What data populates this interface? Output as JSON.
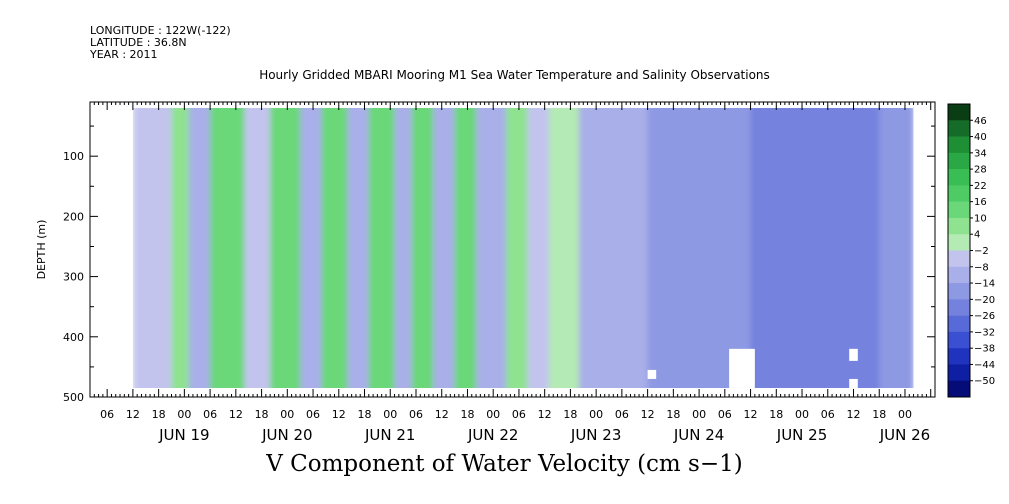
{
  "header": {
    "longitude": "LONGITUDE : 122W(-122)",
    "latitude": "LATITUDE : 36.8N",
    "year": "YEAR : 2011",
    "title": "Hourly Gridded MBARI Mooring M1 Sea Water Temperature and Salinity Observations"
  },
  "caption": "V Component of Water Velocity (cm s−1)",
  "chart_data": {
    "type": "heatmap",
    "title": "Hourly Gridded MBARI Mooring M1 Sea Water Temperature and Salinity Observations",
    "xlabel": "",
    "ylabel": "DEPTH (m)",
    "variable": "V Component of Water Velocity (cm s−1)",
    "x_range": [
      "2011-06-18T02:00",
      "2011-06-26T07:00"
    ],
    "data_x_range": [
      "2011-06-18T12:00",
      "2011-06-26T02:00"
    ],
    "ylim": [
      500,
      10
    ],
    "data_depth_range": [
      20,
      485
    ],
    "x_tick_hours": [
      "06",
      "12",
      "18",
      "00",
      "06",
      "12",
      "18",
      "00",
      "06",
      "12",
      "18",
      "00",
      "06",
      "12",
      "18",
      "00",
      "06",
      "12",
      "18",
      "00",
      "06",
      "12",
      "18",
      "00",
      "06",
      "12",
      "18",
      "00",
      "06",
      "12",
      "18",
      "00"
    ],
    "x_day_labels": [
      "JUN 19",
      "JUN 20",
      "JUN 21",
      "JUN 22",
      "JUN 23",
      "JUN 24",
      "JUN 25",
      "JUN 26"
    ],
    "y_ticks": [
      100,
      200,
      300,
      400,
      500
    ],
    "colorbar": {
      "levels": [
        "46",
        "40",
        "34",
        "28",
        "22",
        "16",
        "10",
        "4",
        "−2",
        "−8",
        "−14",
        "−20",
        "−26",
        "−32",
        "−38",
        "−44",
        "−50"
      ],
      "colors": [
        "#0a3d14",
        "#156b28",
        "#1f8f36",
        "#2aa845",
        "#39bd55",
        "#4fcb65",
        "#6ad778",
        "#8fe290",
        "#b4eab3",
        "#c2c4ee",
        "#a9afe8",
        "#8e99e3",
        "#7482de",
        "#586ad8",
        "#3a4fd1",
        "#2033bf",
        "#0f1fa3",
        "#050c78"
      ]
    },
    "bands": [
      {
        "start": "2011-06-18T12:00",
        "end": "2011-06-18T21:00",
        "v": -6
      },
      {
        "start": "2011-06-18T21:00",
        "end": "2011-06-19T01:00",
        "v": 4
      },
      {
        "start": "2011-06-19T01:00",
        "end": "2011-06-19T06:00",
        "v": -10
      },
      {
        "start": "2011-06-19T06:00",
        "end": "2011-06-19T14:00",
        "v": 10
      },
      {
        "start": "2011-06-19T14:00",
        "end": "2011-06-19T20:00",
        "v": -6
      },
      {
        "start": "2011-06-19T20:00",
        "end": "2011-06-20T03:00",
        "v": 10
      },
      {
        "start": "2011-06-20T03:00",
        "end": "2011-06-20T08:00",
        "v": -12
      },
      {
        "start": "2011-06-20T08:00",
        "end": "2011-06-20T14:00",
        "v": 12
      },
      {
        "start": "2011-06-20T14:00",
        "end": "2011-06-20T19:00",
        "v": -12
      },
      {
        "start": "2011-06-20T19:00",
        "end": "2011-06-21T01:00",
        "v": 14
      },
      {
        "start": "2011-06-21T01:00",
        "end": "2011-06-21T05:00",
        "v": -10
      },
      {
        "start": "2011-06-21T05:00",
        "end": "2011-06-21T10:00",
        "v": 14
      },
      {
        "start": "2011-06-21T10:00",
        "end": "2011-06-21T15:00",
        "v": -10
      },
      {
        "start": "2011-06-21T15:00",
        "end": "2011-06-21T20:00",
        "v": 12
      },
      {
        "start": "2011-06-21T20:00",
        "end": "2011-06-22T03:00",
        "v": -10
      },
      {
        "start": "2011-06-22T03:00",
        "end": "2011-06-22T08:00",
        "v": 8
      },
      {
        "start": "2011-06-22T08:00",
        "end": "2011-06-22T13:00",
        "v": -8
      },
      {
        "start": "2011-06-22T13:00",
        "end": "2011-06-22T20:00",
        "v": 2
      },
      {
        "start": "2011-06-22T20:00",
        "end": "2011-06-23T12:00",
        "v": -12
      },
      {
        "start": "2011-06-23T12:00",
        "end": "2011-06-24T12:00",
        "v": -20
      },
      {
        "start": "2011-06-24T12:00",
        "end": "2011-06-25T18:00",
        "v": -24
      },
      {
        "start": "2011-06-25T18:00",
        "end": "2011-06-26T02:00",
        "v": -16
      }
    ],
    "gaps": [
      {
        "start": "2011-06-23T12:00",
        "end": "2011-06-23T14:00",
        "depth_from": 455,
        "depth_to": 470
      },
      {
        "start": "2011-06-24T07:00",
        "end": "2011-06-24T13:00",
        "depth_from": 420,
        "depth_to": 485
      },
      {
        "start": "2011-06-25T11:00",
        "end": "2011-06-25T13:00",
        "depth_from": 420,
        "depth_to": 440
      },
      {
        "start": "2011-06-25T11:00",
        "end": "2011-06-25T13:00",
        "depth_from": 470,
        "depth_to": 485
      }
    ]
  }
}
